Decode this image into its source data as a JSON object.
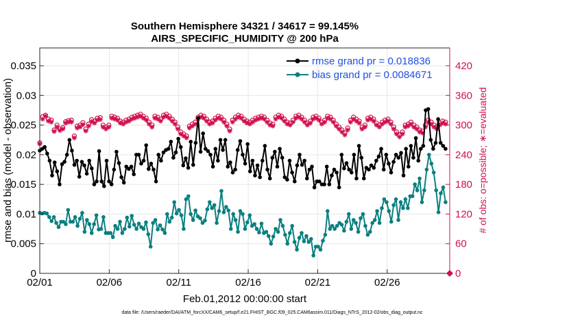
{
  "chart_data": {
    "type": "line",
    "title": "Southern Hemisphere 34321 / 34617 = 99.145%",
    "subtitle": "AIRS_SPECIFIC_HUMIDITY @ 200 hPa",
    "xlabel": "Feb.01,2012 00:00:00 start",
    "ylabel": "rmse and bias (model - observation)",
    "ylabel_right": "# of obs: o=possible; ∗=evaluated",
    "footnote": "data file: /Users/raeder/DAI/ATM_forcXX/CAM6_setup/f.e21.FHIST_BGC.f09_025.CAM6assim.011/Diags_NTrS_2012-02/obs_diag_output.nc",
    "xlim": [
      0,
      29.5
    ],
    "ylim": [
      0,
      0.038
    ],
    "ylim_right": [
      0,
      456
    ],
    "x_ticks": [
      0,
      5,
      10,
      15,
      20,
      25
    ],
    "x_tick_labels": [
      "02/01",
      "02/06",
      "02/11",
      "02/16",
      "02/21",
      "02/26"
    ],
    "y_ticks": [
      0,
      0.005,
      0.01,
      0.015,
      0.02,
      0.025,
      0.03,
      0.035
    ],
    "y_tick_labels": [
      "0",
      "0.005",
      "0.01",
      "0.015",
      "0.02",
      "0.025",
      "0.03",
      "0.035"
    ],
    "y_ticks_right": [
      0,
      60,
      120,
      180,
      240,
      300,
      360,
      420
    ],
    "y_tick_labels_right": [
      "0",
      "60",
      "120",
      "180",
      "240",
      "300",
      "360",
      "420"
    ],
    "grid": true,
    "legend_position": "top-right",
    "series": [
      {
        "name": "rmse grand pr = 0.018836",
        "color": "#000000",
        "marker": "circle",
        "values": [
          0.0207,
          0.021,
          0.0213,
          0.0202,
          0.019,
          0.0165,
          0.0187,
          0.0172,
          0.015,
          0.0184,
          0.0188,
          0.02,
          0.0225,
          0.0207,
          0.0183,
          0.019,
          0.0163,
          0.0188,
          0.0182,
          0.0168,
          0.019,
          0.0177,
          0.015,
          0.0155,
          0.0206,
          0.0155,
          0.0147,
          0.019,
          0.0155,
          0.015,
          0.0175,
          0.0205,
          0.0186,
          0.0162,
          0.0153,
          0.018,
          0.0176,
          0.018,
          0.0167,
          0.02,
          0.02,
          0.0185,
          0.019,
          0.0216,
          0.0176,
          0.0185,
          0.0175,
          0.0155,
          0.02,
          0.019,
          0.0204,
          0.0208,
          0.021,
          0.0222,
          0.0195,
          0.0204,
          0.0227,
          0.0213,
          0.0182,
          0.0194,
          0.0178,
          0.0222,
          0.0183,
          0.022,
          0.0262,
          0.0205,
          0.0236,
          0.021,
          0.0206,
          0.02,
          0.018,
          0.021,
          0.019,
          0.0225,
          0.0208,
          0.0225,
          0.018,
          0.0187,
          0.017,
          0.0175,
          0.0208,
          0.0223,
          0.02,
          0.0185,
          0.0218,
          0.0172,
          0.019,
          0.0165,
          0.0182,
          0.0162,
          0.019,
          0.0215,
          0.0175,
          0.016,
          0.0195,
          0.0205,
          0.018,
          0.021,
          0.0195,
          0.0162,
          0.0158,
          0.019,
          0.017,
          0.0155,
          0.0182,
          0.02,
          0.0183,
          0.019,
          0.016,
          0.0175,
          0.018,
          0.0145,
          0.0155,
          0.0155,
          0.015,
          0.015,
          0.018,
          0.015,
          0.0165,
          0.0175,
          0.017,
          0.0145,
          0.02,
          0.0177,
          0.0186,
          0.0175,
          0.017,
          0.02,
          0.016,
          0.0215,
          0.0195,
          0.016,
          0.0178,
          0.0175,
          0.0182,
          0.0178,
          0.019,
          0.0197,
          0.021,
          0.0175,
          0.02,
          0.0185,
          0.017,
          0.0188,
          0.02,
          0.0195,
          0.0203,
          0.0165,
          0.021,
          0.018,
          0.0215,
          0.0195,
          0.0228,
          0.019,
          0.021,
          0.0215,
          0.0275,
          0.0277,
          0.0225,
          0.021,
          0.022,
          0.026,
          0.022,
          0.0215,
          0.021
        ]
      },
      {
        "name": "bias grand pr = 0.0084671",
        "color": "#0a7f7f",
        "marker": "circle",
        "values": [
          0.0102,
          0.0101,
          0.0102,
          0.0101,
          0.0095,
          0.0088,
          0.0095,
          0.0085,
          0.0078,
          0.0087,
          0.0087,
          0.0083,
          0.0107,
          0.0087,
          0.0087,
          0.0095,
          0.008,
          0.0092,
          0.0102,
          0.007,
          0.009,
          0.0083,
          0.0068,
          0.0083,
          0.0098,
          0.0074,
          0.0075,
          0.0095,
          0.0068,
          0.0068,
          0.0068,
          0.0061,
          0.008,
          0.0075,
          0.0087,
          0.0068,
          0.0075,
          0.0094,
          0.0079,
          0.0097,
          0.0082,
          0.0075,
          0.0084,
          0.0078,
          0.0075,
          0.0086,
          0.0066,
          0.0045,
          0.0085,
          0.009,
          0.0074,
          0.0081,
          0.0074,
          0.0068,
          0.01,
          0.0087,
          0.0094,
          0.012,
          0.0101,
          0.0107,
          0.0098,
          0.0075,
          0.0125,
          0.013,
          0.01,
          0.009,
          0.0106,
          0.0096,
          0.0093,
          0.0085,
          0.0089,
          0.0108,
          0.012,
          0.011,
          0.0115,
          0.0085,
          0.0105,
          0.0139,
          0.0103,
          0.0112,
          0.0106,
          0.0075,
          0.01,
          0.009,
          0.007,
          0.0105,
          0.01,
          0.0075,
          0.0086,
          0.0098,
          0.008,
          0.0083,
          0.0075,
          0.0069,
          0.0084,
          0.0068,
          0.007,
          0.0063,
          0.005,
          0.0062,
          0.0075,
          0.007,
          0.009,
          0.008,
          0.0065,
          0.005,
          0.0068,
          0.008,
          0.0053,
          0.004,
          0.006,
          0.0068,
          0.0054,
          0.0063,
          0.0053,
          0.0058,
          0.003,
          0.0045,
          0.0045,
          0.004,
          0.0055,
          0.0065,
          0.0105,
          0.0075,
          0.008,
          0.0075,
          0.008,
          0.0085,
          0.0082,
          0.0072,
          0.0087,
          0.01,
          0.0075,
          0.009,
          0.0085,
          0.007,
          0.0093,
          0.01,
          0.008,
          0.0065,
          0.007,
          0.0085,
          0.009,
          0.0105,
          0.0085,
          0.011,
          0.0125,
          0.012,
          0.0105,
          0.0087,
          0.0115,
          0.0125,
          0.009,
          0.012,
          0.011,
          0.0125,
          0.011,
          0.013,
          0.013,
          0.015,
          0.014,
          0.016,
          0.012,
          0.014,
          0.0175,
          0.02,
          0.0185,
          0.017,
          0.014,
          0.0103,
          0.0135,
          0.0145,
          0.012
        ]
      }
    ],
    "obs_possible": [
      264,
      317,
      320,
      312,
      310,
      290,
      300,
      292,
      295,
      307,
      309,
      310,
      278,
      298,
      300,
      305,
      292,
      302,
      311,
      308,
      314,
      315,
      300,
      296,
      300,
      318,
      316,
      314,
      308,
      306,
      310,
      312,
      316,
      318,
      320,
      322,
      318,
      314,
      306,
      300,
      318,
      316,
      312,
      320,
      322,
      318,
      312,
      306,
      296,
      286,
      282,
      278,
      298,
      302,
      306,
      316,
      320,
      318,
      312,
      306,
      308,
      314,
      318,
      316,
      310,
      302,
      292,
      310,
      316,
      320,
      318,
      312,
      308,
      306,
      310,
      314,
      316,
      318,
      316,
      310,
      304,
      302,
      316,
      320,
      318,
      312,
      306,
      304,
      310,
      318,
      320,
      316,
      310,
      304,
      308,
      316,
      318,
      314,
      306,
      310,
      318,
      316,
      310,
      302,
      296,
      290,
      284,
      294,
      310,
      316,
      312,
      308,
      296,
      300,
      314,
      316,
      312,
      304,
      300,
      306,
      310,
      312,
      306,
      296,
      286,
      280,
      286,
      300,
      302,
      306,
      300,
      296,
      290,
      288,
      300,
      310,
      306,
      300,
      296,
      304,
      308,
      306
    ],
    "obs_evaluated": [
      262,
      312,
      318,
      308,
      306,
      287,
      296,
      289,
      292,
      304,
      306,
      306,
      274,
      294,
      296,
      301,
      288,
      298,
      307,
      304,
      310,
      311,
      296,
      292,
      296,
      314,
      312,
      310,
      304,
      302,
      306,
      308,
      312,
      314,
      316,
      318,
      314,
      310,
      302,
      296,
      314,
      312,
      308,
      316,
      318,
      314,
      308,
      302,
      292,
      282,
      278,
      274,
      294,
      298,
      302,
      312,
      316,
      314,
      308,
      302,
      304,
      310,
      314,
      312,
      306,
      298,
      288,
      306,
      312,
      316,
      314,
      308,
      304,
      302,
      306,
      310,
      312,
      314,
      312,
      306,
      300,
      298,
      312,
      316,
      314,
      308,
      302,
      300,
      306,
      314,
      316,
      312,
      306,
      300,
      304,
      312,
      314,
      310,
      302,
      306,
      314,
      312,
      306,
      298,
      292,
      286,
      280,
      290,
      306,
      312,
      308,
      304,
      292,
      296,
      310,
      312,
      308,
      300,
      296,
      302,
      306,
      308,
      302,
      292,
      282,
      276,
      282,
      296,
      298,
      302,
      296,
      292,
      286,
      284,
      296,
      306,
      302,
      296,
      292,
      300,
      304,
      302
    ],
    "obs_colors": {
      "possible": "#d0104c",
      "evaluated": "#d0104c",
      "rmse": "#000000",
      "bias": "#0a7f7f",
      "grid": "#e6e6e6"
    }
  }
}
